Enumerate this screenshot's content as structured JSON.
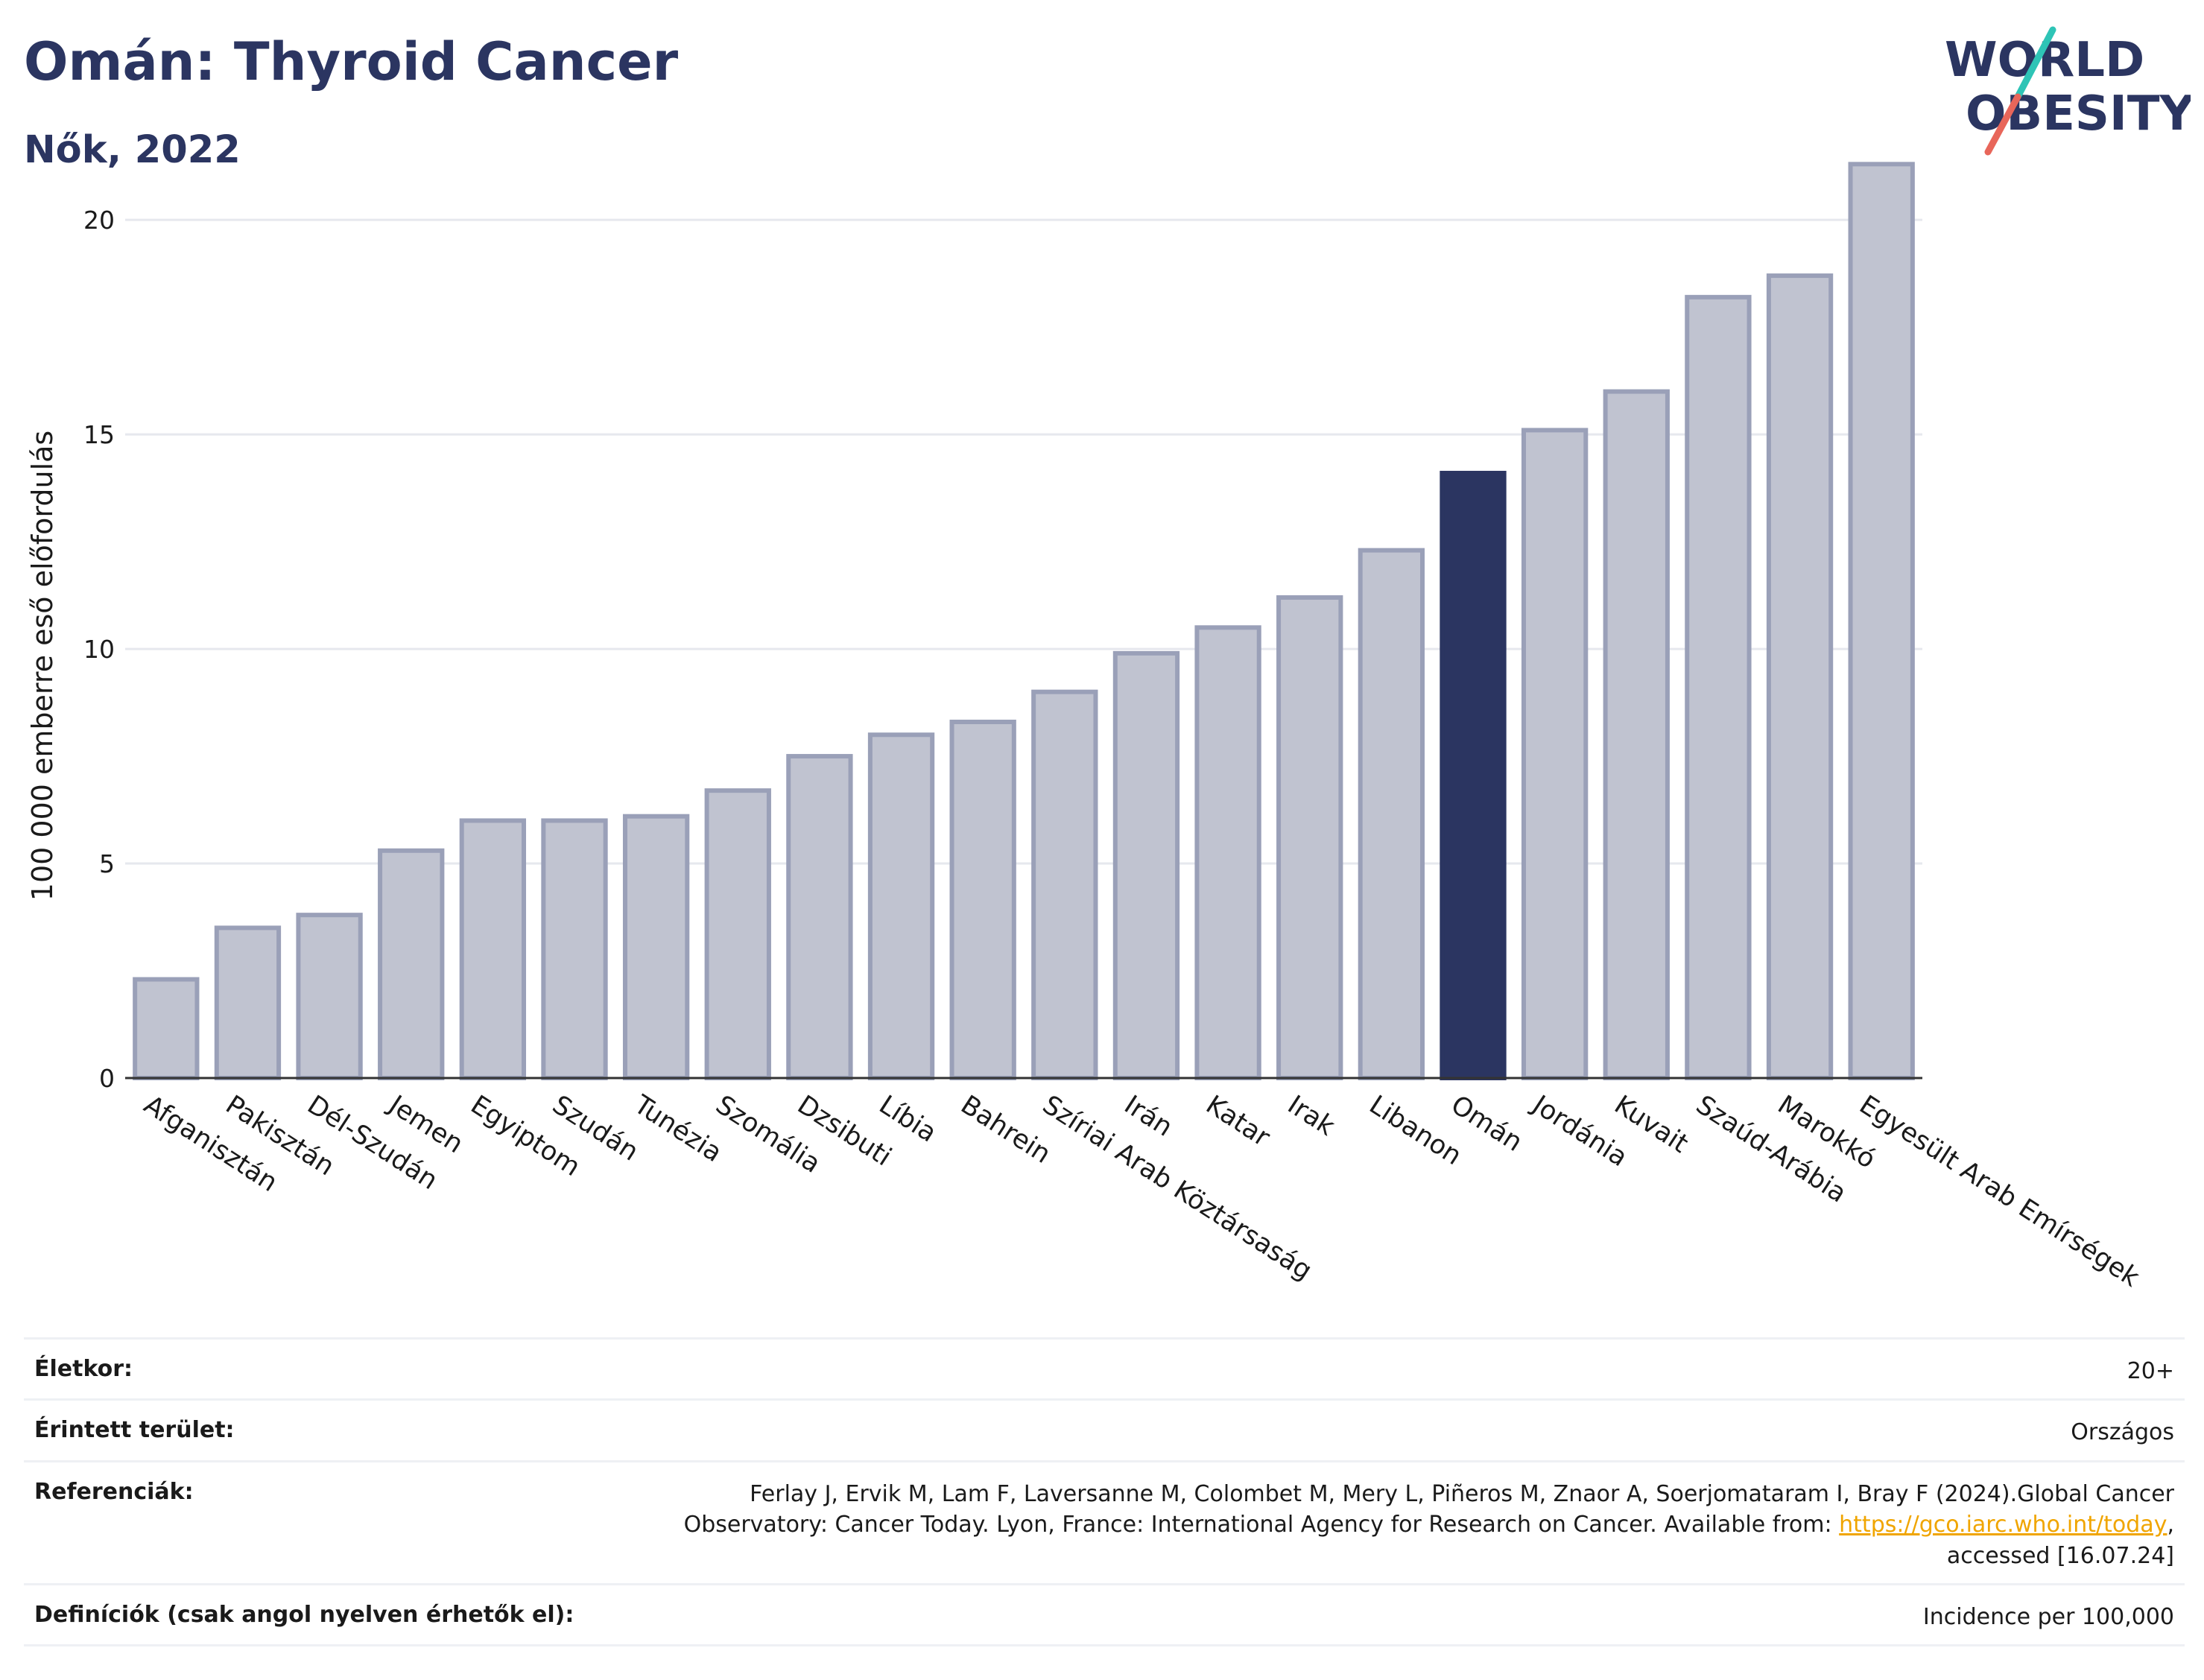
{
  "header": {
    "title": "Omán: Thyroid Cancer",
    "subtitle": "Nők, 2022"
  },
  "logo": {
    "line1": "WORLD",
    "line2": "OBESITY",
    "accent_colors": [
      "#2ec4b6",
      "#e8665a"
    ]
  },
  "chart_data": {
    "type": "bar",
    "ylabel": "100 000 emberre eső előfordulás",
    "ylim": [
      0,
      22
    ],
    "yticks": [
      0,
      5,
      10,
      15,
      20
    ],
    "grid": true,
    "categories": [
      "Afganisztán",
      "Pakisztán",
      "Dél-Szudán",
      "Jemen",
      "Egyiptom",
      "Szudán",
      "Tunézia",
      "Szomália",
      "Dzsibuti",
      "Líbia",
      "Bahrein",
      "Szíriai Arab Köztársaság",
      "Irán",
      "Katar",
      "Irak",
      "Libanon",
      "Omán",
      "Jordánia",
      "Kuvait",
      "Szaúd-Arábia",
      "Marokkó",
      "Egyesült Arab Emírségek"
    ],
    "values": [
      2.3,
      3.5,
      3.8,
      5.3,
      6.0,
      6.0,
      6.1,
      6.7,
      7.5,
      8.0,
      8.3,
      9.0,
      9.9,
      10.5,
      11.2,
      12.3,
      14.1,
      15.1,
      16.0,
      18.2,
      18.7,
      21.3
    ],
    "highlight": "Omán",
    "colors": {
      "default_fill": "#c0c3d0",
      "default_stroke": "#9aa0b8",
      "highlight": "#2b3561"
    }
  },
  "info": [
    {
      "label": "Életkor:",
      "value": "20+"
    },
    {
      "label": "Érintett terület:",
      "value": "Országos"
    },
    {
      "label": "Referenciák:",
      "value_parts": {
        "before": "Ferlay J, Ervik M, Lam F, Laversanne M, Colombet M, Mery L, Piñeros M, Znaor A, Soerjomataram I, Bray F (2024).Global Cancer Observatory: Cancer Today. Lyon, France: International Agency for Research on Cancer. Available from: ",
        "link": "https://gco.iarc.who.int/today",
        "after": ", accessed [16.07.24]"
      }
    },
    {
      "label": "Definíciók (csak angol nyelven érhetők el):",
      "value": "Incidence per 100,000"
    }
  ]
}
